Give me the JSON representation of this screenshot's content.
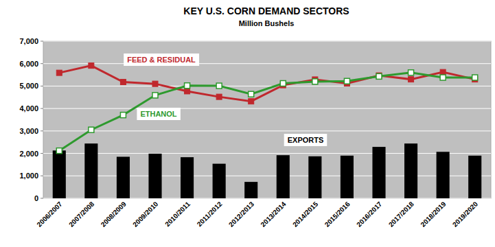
{
  "chart_data": {
    "type": "bar",
    "title": "KEY U.S. CORN DEMAND SECTORS",
    "subtitle": "Million Bushels",
    "categories": [
      "2006/2007",
      "2007/2008",
      "2008/2009",
      "2009/2010",
      "2010/2011",
      "2011/2012",
      "2012/2013",
      "2013/2014",
      "2014/2015",
      "2015/2016",
      "2016/2017",
      "2017/2018",
      "2018/2019",
      "2019/2020"
    ],
    "series": [
      {
        "name": "FEED & RESIDUAL",
        "type": "line",
        "color": "#c0282d",
        "marker": "square",
        "values": [
          5590,
          5910,
          5180,
          5100,
          4770,
          4520,
          4320,
          5040,
          5290,
          5120,
          5470,
          5300,
          5620,
          5300
        ]
      },
      {
        "name": "ETHANOL",
        "type": "line",
        "color": "#2e9a2e",
        "marker": "open-square",
        "values": [
          2120,
          3050,
          3710,
          4590,
          5020,
          5010,
          4640,
          5120,
          5200,
          5220,
          5430,
          5600,
          5380,
          5380
        ]
      },
      {
        "name": "EXPORTS",
        "type": "bar",
        "color": "#000000",
        "values": [
          2130,
          2440,
          1850,
          1990,
          1830,
          1540,
          730,
          1920,
          1870,
          1900,
          2290,
          2440,
          2070,
          1900
        ]
      }
    ],
    "ylim": [
      0,
      7000
    ],
    "yticks": [
      0,
      {
        "value": 1000,
        "label": "1,000"
      },
      {
        "value": 2000,
        "label": "2,000"
      },
      {
        "value": 3000,
        "label": "3,000"
      },
      {
        "value": 4000,
        "label": "4,000"
      },
      {
        "value": 5000,
        "label": "5,000"
      },
      {
        "value": 6000,
        "label": "6,000"
      },
      {
        "value": 7000,
        "label": "7,000"
      }
    ],
    "grid": true
  }
}
